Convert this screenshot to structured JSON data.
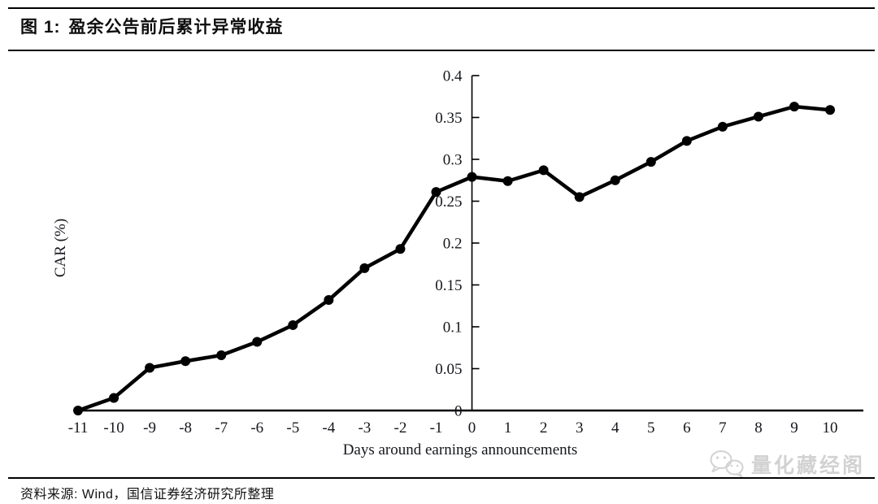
{
  "header": {
    "title_prefix": "图 1:",
    "title_text": "盈余公告前后累计异常收益"
  },
  "footer": {
    "source_text": "资料来源: Wind，国信证券经济研究所整理"
  },
  "watermark": {
    "icon": "wechat-icon",
    "label": "量化藏经阁",
    "color": "#d2d2d2"
  },
  "chart_data": {
    "type": "line",
    "title": "盈余公告前后累计异常收益",
    "xlabel": "Days around earnings announcements",
    "ylabel": "CAR (%)",
    "x": [
      -11,
      -10,
      -9,
      -8,
      -7,
      -6,
      -5,
      -4,
      -3,
      -2,
      -1,
      0,
      1,
      2,
      3,
      4,
      5,
      6,
      7,
      8,
      9,
      10
    ],
    "series": [
      {
        "name": "CAR",
        "values": [
          0.0,
          0.015,
          0.051,
          0.059,
          0.066,
          0.082,
          0.102,
          0.132,
          0.17,
          0.193,
          0.261,
          0.279,
          0.274,
          0.287,
          0.255,
          0.275,
          0.297,
          0.322,
          0.339,
          0.351,
          0.363,
          0.359
        ]
      }
    ],
    "ylim": [
      0,
      0.4
    ],
    "yticks": [
      0,
      0.05,
      0.1,
      0.15,
      0.2,
      0.25,
      0.3,
      0.35,
      0.4
    ],
    "xlim": [
      -11,
      10
    ],
    "grid": false,
    "legend": "none",
    "line_color": "#000000",
    "marker": "circle",
    "axis_position": "y-axis-at-x-zero"
  }
}
